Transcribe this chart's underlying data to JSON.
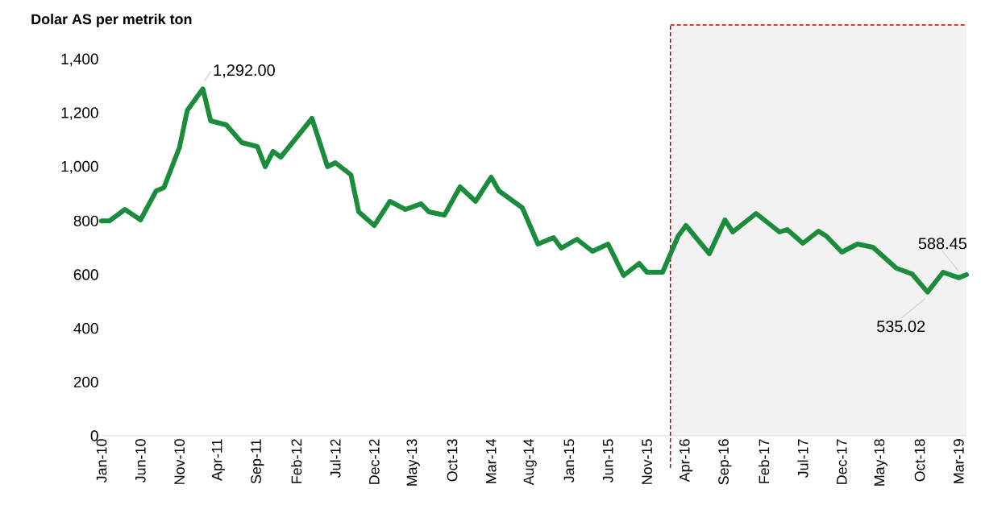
{
  "chart_data": {
    "type": "line",
    "ylabel": "Dolar AS per metrik ton",
    "color": "#1a8c3c",
    "x": [
      "2010-01",
      "2010-02",
      "2010-04",
      "2010-06",
      "2010-08",
      "2010-09",
      "2010-11",
      "2010-12",
      "2011-02",
      "2011-03",
      "2011-05",
      "2011-07",
      "2011-09",
      "2011-10",
      "2011-11",
      "2011-12",
      "2012-04",
      "2012-06",
      "2012-07",
      "2012-09",
      "2012-10",
      "2012-12",
      "2013-02",
      "2013-04",
      "2013-06",
      "2013-07",
      "2013-09",
      "2013-11",
      "2014-01",
      "2014-03",
      "2014-04",
      "2014-07",
      "2014-09",
      "2014-11",
      "2014-12",
      "2015-02",
      "2015-04",
      "2015-06",
      "2015-08",
      "2015-10",
      "2015-11",
      "2016-01",
      "2016-03",
      "2016-04",
      "2016-07",
      "2016-09",
      "2016-10",
      "2017-01",
      "2017-04",
      "2017-05",
      "2017-07",
      "2017-09",
      "2017-10",
      "2017-12",
      "2018-02",
      "2018-04",
      "2018-07",
      "2018-09",
      "2018-11",
      "2019-01",
      "2019-03",
      "2019-04"
    ],
    "values": [
      800,
      800,
      843,
      804,
      912,
      924,
      1074,
      1212,
      1292,
      1173,
      1158,
      1092,
      1077,
      1002,
      1059,
      1038,
      1182,
      1002,
      1017,
      972,
      834,
      783,
      873,
      843,
      864,
      834,
      822,
      927,
      873,
      963,
      912,
      849,
      714,
      738,
      699,
      732,
      687,
      714,
      597,
      642,
      609,
      609,
      744,
      783,
      678,
      804,
      759,
      828,
      759,
      768,
      717,
      762,
      744,
      684,
      714,
      702,
      624,
      603,
      535.02,
      609,
      588.45,
      600
    ],
    "xlim": [
      "2010-01",
      "2019-04"
    ],
    "ylim": [
      0,
      1530
    ],
    "xticks": [
      {
        "value": "2010-01",
        "label": "Jan-10"
      },
      {
        "value": "2010-06",
        "label": "Jun-10"
      },
      {
        "value": "2010-11",
        "label": "Nov-10"
      },
      {
        "value": "2011-04",
        "label": "Apr-11"
      },
      {
        "value": "2011-09",
        "label": "Sep-11"
      },
      {
        "value": "2012-02",
        "label": "Feb-12"
      },
      {
        "value": "2012-07",
        "label": "Jul-12"
      },
      {
        "value": "2012-12",
        "label": "Dec-12"
      },
      {
        "value": "2013-05",
        "label": "May-13"
      },
      {
        "value": "2013-10",
        "label": "Oct-13"
      },
      {
        "value": "2014-03",
        "label": "Mar-14"
      },
      {
        "value": "2014-08",
        "label": "Aug-14"
      },
      {
        "value": "2015-01",
        "label": "Jan-15"
      },
      {
        "value": "2015-06",
        "label": "Jun-15"
      },
      {
        "value": "2015-11",
        "label": "Nov-15"
      },
      {
        "value": "2016-04",
        "label": "Apr-16"
      },
      {
        "value": "2016-09",
        "label": "Sep-16"
      },
      {
        "value": "2017-02",
        "label": "Feb-17"
      },
      {
        "value": "2017-07",
        "label": "Jul-17"
      },
      {
        "value": "2017-12",
        "label": "Dec-17"
      },
      {
        "value": "2018-05",
        "label": "May-18"
      },
      {
        "value": "2018-10",
        "label": "Oct-18"
      },
      {
        "value": "2019-03",
        "label": "Mar-19"
      }
    ],
    "yticks": [
      0,
      200,
      400,
      600,
      800,
      {
        "value": 1000,
        "label": "1,000"
      },
      {
        "value": 1200,
        "label": "1,200"
      },
      {
        "value": 1400,
        "label": "1,400"
      }
    ],
    "ref_lines": [
      {
        "axis": "x",
        "value": "2016-02",
        "color": "#c00000",
        "line_style": "dashed"
      }
    ],
    "bands": [
      {
        "axis": "x",
        "from": "2016-02",
        "to": "2019-04",
        "color": "#f2f2f2"
      }
    ],
    "annotations": [
      {
        "text": "1,292.00",
        "x": "2011-02",
        "y": 1292
      },
      {
        "text": "535.02",
        "x": "2018-11",
        "y": 535.02
      },
      {
        "text": "588.45",
        "x": "2019-03",
        "y": 588.45
      }
    ]
  }
}
